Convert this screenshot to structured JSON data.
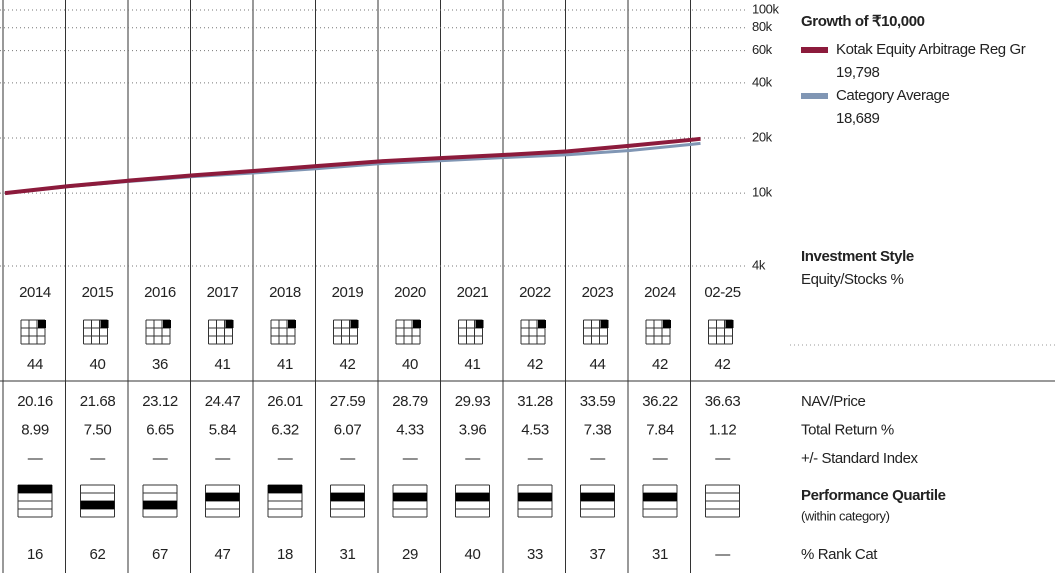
{
  "chart_data": {
    "type": "line",
    "title": "Growth of ₹10,000",
    "log_scale": true,
    "ylim": [
      4000,
      100000
    ],
    "yticks": [
      {
        "value": 100000,
        "label": "100k"
      },
      {
        "value": 80000,
        "label": "80k"
      },
      {
        "value": 60000,
        "label": "60k"
      },
      {
        "value": 40000,
        "label": "40k"
      },
      {
        "value": 20000,
        "label": "20k"
      },
      {
        "value": 10000,
        "label": "10k"
      },
      {
        "value": 4000,
        "label": "4k"
      }
    ],
    "grid": true,
    "series": [
      {
        "name": "Category Average",
        "color": "#8096b4",
        "values": [
          10000,
          10850,
          11600,
          12300,
          12900,
          13600,
          14500,
          15050,
          15650,
          16200,
          17100,
          18480,
          18689
        ],
        "value_labels": [
          null,
          null,
          null,
          null,
          null,
          null,
          null,
          null,
          null,
          null,
          null,
          null,
          "18,689"
        ]
      },
      {
        "name": "Kotak Equity Arbitrage Reg Gr",
        "color": "#8c1b3c",
        "values": [
          10000,
          10897,
          11714,
          12493,
          13223,
          14059,
          14912,
          15558,
          16174,
          16907,
          18155,
          19579,
          19798
        ],
        "value_labels": [
          null,
          null,
          null,
          null,
          null,
          null,
          null,
          null,
          null,
          null,
          null,
          null,
          "19,798"
        ]
      }
    ]
  },
  "table": {
    "columns": [
      "2014",
      "2015",
      "2016",
      "2017",
      "2018",
      "2019",
      "2020",
      "2021",
      "2022",
      "2023",
      "2024",
      "02-25"
    ],
    "style_title": "Investment Style",
    "style_label": "Equity/Stocks %",
    "equity": [
      44,
      40,
      36,
      41,
      41,
      42,
      40,
      41,
      42,
      44,
      42,
      42
    ],
    "rows": [
      {
        "label": "NAV/Price",
        "values": [
          "20.16",
          "21.68",
          "23.12",
          "24.47",
          "26.01",
          "27.59",
          "28.79",
          "29.93",
          "31.28",
          "33.59",
          "36.22",
          "36.63"
        ]
      },
      {
        "label": "Total Return %",
        "values": [
          "8.99",
          "7.50",
          "6.65",
          "5.84",
          "6.32",
          "6.07",
          "4.33",
          "3.96",
          "4.53",
          "7.38",
          "7.84",
          "1.12"
        ]
      },
      {
        "label": "+/- Standard Index",
        "values": [
          "—",
          "—",
          "—",
          "—",
          "—",
          "—",
          "—",
          "—",
          "—",
          "—",
          "—",
          "—"
        ]
      }
    ],
    "quartile_title": "Performance Quartile",
    "quartile_subtitle": "(within category)",
    "quartiles": [
      1,
      3,
      3,
      2,
      1,
      2,
      2,
      2,
      2,
      2,
      2,
      null
    ],
    "rank_label": "% Rank Cat",
    "rank": [
      "16",
      "62",
      "67",
      "47",
      "18",
      "31",
      "29",
      "40",
      "33",
      "37",
      "31",
      "—"
    ]
  }
}
